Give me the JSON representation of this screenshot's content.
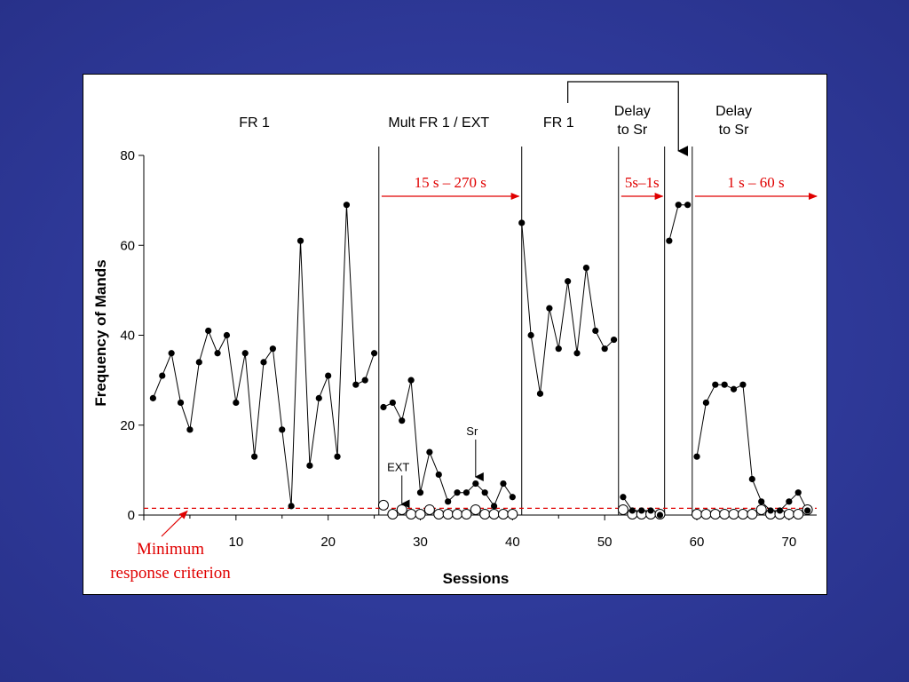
{
  "colors": {
    "background": "#2f3a9a",
    "panel": "#ffffff",
    "line": "#000000",
    "annotation": "#e00000"
  },
  "chart_data": {
    "type": "line",
    "title": "",
    "xlabel": "Sessions",
    "ylabel": "Frequency of Mands",
    "xlim": [
      0,
      73
    ],
    "ylim": [
      0,
      80
    ],
    "x_ticks": [
      10,
      20,
      30,
      40,
      50,
      60,
      70
    ],
    "y_ticks": [
      0,
      20,
      40,
      60,
      80
    ],
    "grid": false,
    "phases": [
      {
        "label": "FR 1",
        "x": 12
      },
      {
        "label": "Mult FR 1 / EXT",
        "x": 32
      },
      {
        "label": "FR 1",
        "x": 45
      },
      {
        "label_lines": [
          "Delay",
          "to Sr"
        ],
        "x": 53
      },
      {
        "label_lines": [
          "Delay",
          "to Sr"
        ],
        "x": 64
      }
    ],
    "phase_lines": [
      25.5,
      41,
      51.5,
      56.5,
      59.5
    ],
    "delay_ranges": [
      {
        "label": "15 s – 270 s",
        "from": 25.8,
        "to": 40.7
      },
      {
        "label": "5s–1s",
        "from": 51.8,
        "to": 56.3
      },
      {
        "label": "1 s – 60 s",
        "from": 59.8,
        "to": 73
      }
    ],
    "criterion": {
      "value": 1.5,
      "label_lines": [
        "Minimum",
        "response criterion"
      ]
    },
    "annotations": [
      {
        "label": "EXT",
        "x": 28,
        "y_text": 9,
        "y_arrow": 2.5
      },
      {
        "label": "Sr",
        "x": 36,
        "y_text": 17,
        "y_arrow": 8.5
      }
    ],
    "series": [
      {
        "marker": "filled",
        "segments": [
          [
            [
              1,
              26
            ],
            [
              2,
              31
            ],
            [
              3,
              36
            ],
            [
              4,
              25
            ],
            [
              5,
              19
            ],
            [
              6,
              34
            ],
            [
              7,
              41
            ],
            [
              8,
              36
            ],
            [
              9,
              40
            ],
            [
              10,
              25
            ],
            [
              11,
              36
            ],
            [
              12,
              13
            ],
            [
              13,
              34
            ],
            [
              14,
              37
            ],
            [
              15,
              19
            ],
            [
              16,
              2
            ],
            [
              17,
              61
            ],
            [
              18,
              11
            ],
            [
              19,
              26
            ],
            [
              20,
              31
            ],
            [
              21,
              13
            ],
            [
              22,
              69
            ],
            [
              23,
              29
            ],
            [
              24,
              30
            ],
            [
              25,
              36
            ]
          ],
          [
            [
              26,
              24
            ],
            [
              27,
              25
            ],
            [
              28,
              21
            ],
            [
              29,
              30
            ],
            [
              30,
              5
            ],
            [
              31,
              14
            ],
            [
              32,
              9
            ],
            [
              33,
              3
            ],
            [
              34,
              5
            ],
            [
              35,
              5
            ],
            [
              36,
              7
            ],
            [
              37,
              5
            ],
            [
              38,
              2
            ],
            [
              39,
              7
            ],
            [
              40,
              4
            ]
          ],
          [
            [
              41,
              65
            ],
            [
              42,
              40
            ],
            [
              43,
              27
            ],
            [
              44,
              46
            ],
            [
              45,
              37
            ],
            [
              46,
              52
            ],
            [
              47,
              36
            ],
            [
              48,
              55
            ],
            [
              49,
              41
            ],
            [
              50,
              37
            ],
            [
              51,
              39
            ]
          ],
          [
            [
              52,
              4
            ],
            [
              53,
              1
            ],
            [
              54,
              1
            ],
            [
              55,
              1
            ],
            [
              56,
              0
            ]
          ],
          [
            [
              57,
              61
            ],
            [
              58,
              69
            ],
            [
              59,
              69
            ]
          ],
          [
            [
              60,
              13
            ],
            [
              61,
              25
            ],
            [
              62,
              29
            ],
            [
              63,
              29
            ],
            [
              64,
              28
            ],
            [
              65,
              29
            ],
            [
              66,
              8
            ],
            [
              67,
              3
            ],
            [
              68,
              1
            ],
            [
              69,
              1
            ],
            [
              70,
              3
            ],
            [
              71,
              5
            ],
            [
              72,
              1
            ]
          ]
        ]
      },
      {
        "marker": "open",
        "segments": [
          [
            [
              26,
              2
            ],
            [
              27,
              0
            ],
            [
              28,
              1
            ],
            [
              29,
              0
            ],
            [
              30,
              0
            ],
            [
              31,
              1
            ],
            [
              32,
              0
            ],
            [
              33,
              0
            ],
            [
              34,
              0
            ],
            [
              35,
              0
            ],
            [
              36,
              1
            ],
            [
              37,
              0
            ],
            [
              38,
              0
            ],
            [
              39,
              0
            ],
            [
              40,
              0
            ]
          ],
          [
            [
              52,
              1
            ],
            [
              53,
              0
            ],
            [
              54,
              0
            ],
            [
              55,
              0
            ],
            [
              56,
              0
            ]
          ],
          [
            [
              60,
              0
            ],
            [
              61,
              0
            ],
            [
              62,
              0
            ],
            [
              63,
              0
            ],
            [
              64,
              0
            ],
            [
              65,
              0
            ],
            [
              66,
              0
            ],
            [
              67,
              1
            ],
            [
              68,
              0
            ],
            [
              69,
              0
            ],
            [
              70,
              0
            ],
            [
              71,
              0
            ],
            [
              72,
              1
            ]
          ]
        ]
      }
    ]
  }
}
